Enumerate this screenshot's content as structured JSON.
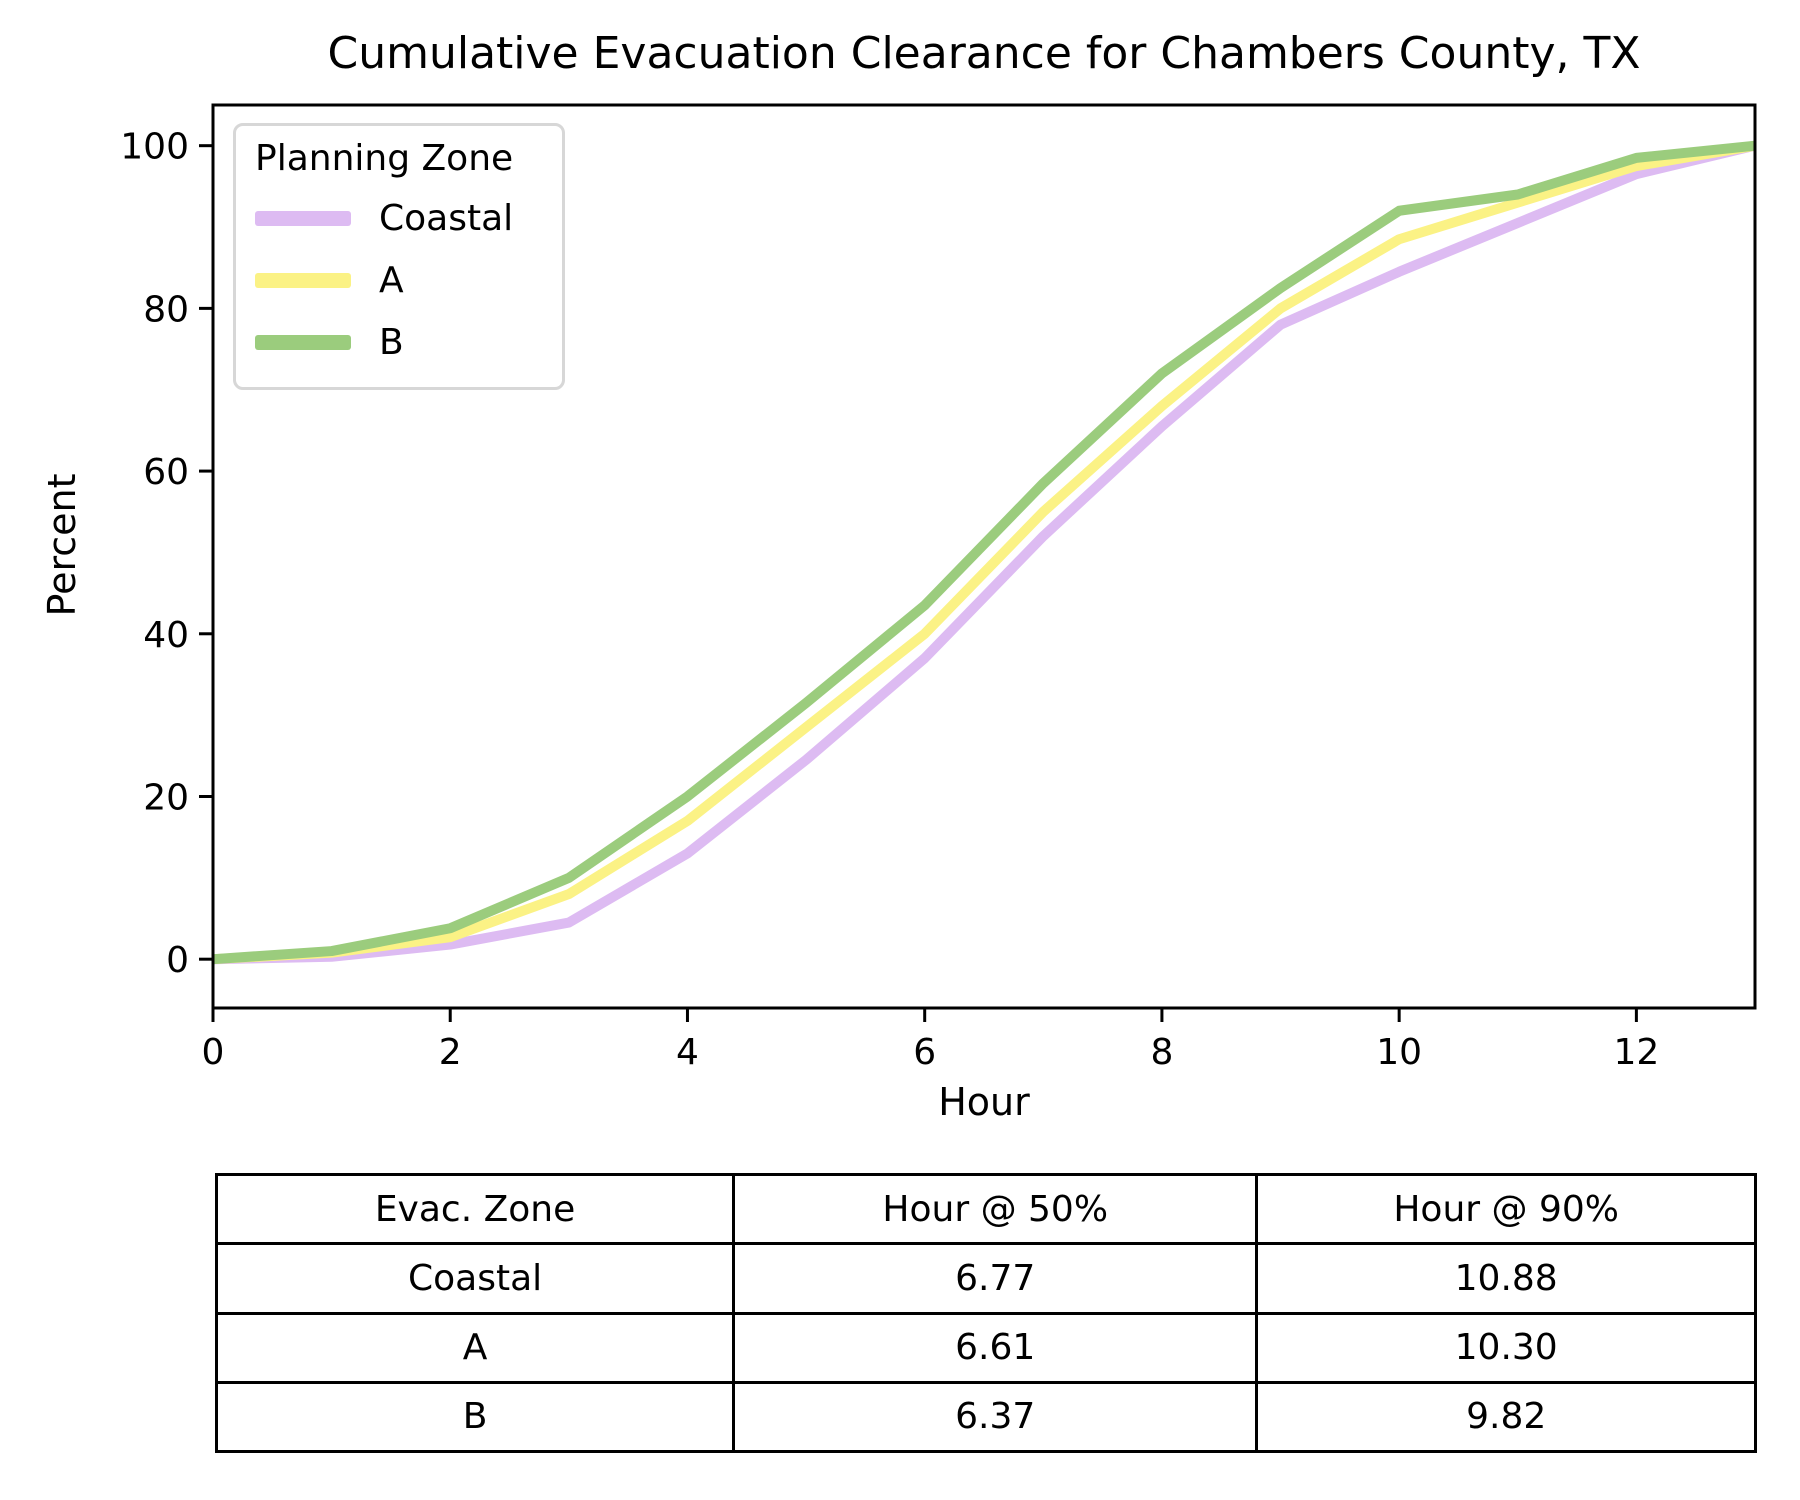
{
  "chart_data": {
    "type": "line",
    "title": "Cumulative Evacuation Clearance for Chambers County, TX",
    "xlabel": "Hour",
    "ylabel": "Percent",
    "xlim": [
      0,
      13
    ],
    "ylim": [
      -6,
      105
    ],
    "xticks": [
      0,
      2,
      4,
      6,
      8,
      10,
      12
    ],
    "yticks": [
      0,
      20,
      40,
      60,
      80,
      100
    ],
    "grid": false,
    "legend": {
      "title": "Planning Zone",
      "position": "upper-left"
    },
    "x": [
      0,
      1,
      2,
      3,
      4,
      5,
      6,
      7,
      8,
      9,
      10,
      11,
      12,
      13
    ],
    "series": [
      {
        "name": "Coastal",
        "color": "#ddbbf2",
        "values": [
          0,
          0.3,
          1.8,
          4.5,
          13,
          24.5,
          37,
          52,
          65.5,
          78,
          84.5,
          90.5,
          96.5,
          100
        ]
      },
      {
        "name": "A",
        "color": "#fbf285",
        "values": [
          0,
          0.8,
          2.7,
          8,
          17,
          28.5,
          40,
          55,
          68,
          80,
          88.5,
          93,
          97.5,
          100
        ]
      },
      {
        "name": "B",
        "color": "#9bcc7d",
        "values": [
          0,
          1,
          3.8,
          10,
          20,
          31.5,
          43.5,
          58.5,
          72,
          82.5,
          92,
          94,
          98.5,
          100
        ]
      }
    ]
  },
  "table": {
    "headers": [
      "Evac. Zone",
      "Hour @ 50%",
      "Hour @ 90%"
    ],
    "rows": [
      [
        "Coastal",
        "6.77",
        "10.88"
      ],
      [
        "A",
        "6.61",
        "10.30"
      ],
      [
        "B",
        "6.37",
        "9.82"
      ]
    ]
  }
}
